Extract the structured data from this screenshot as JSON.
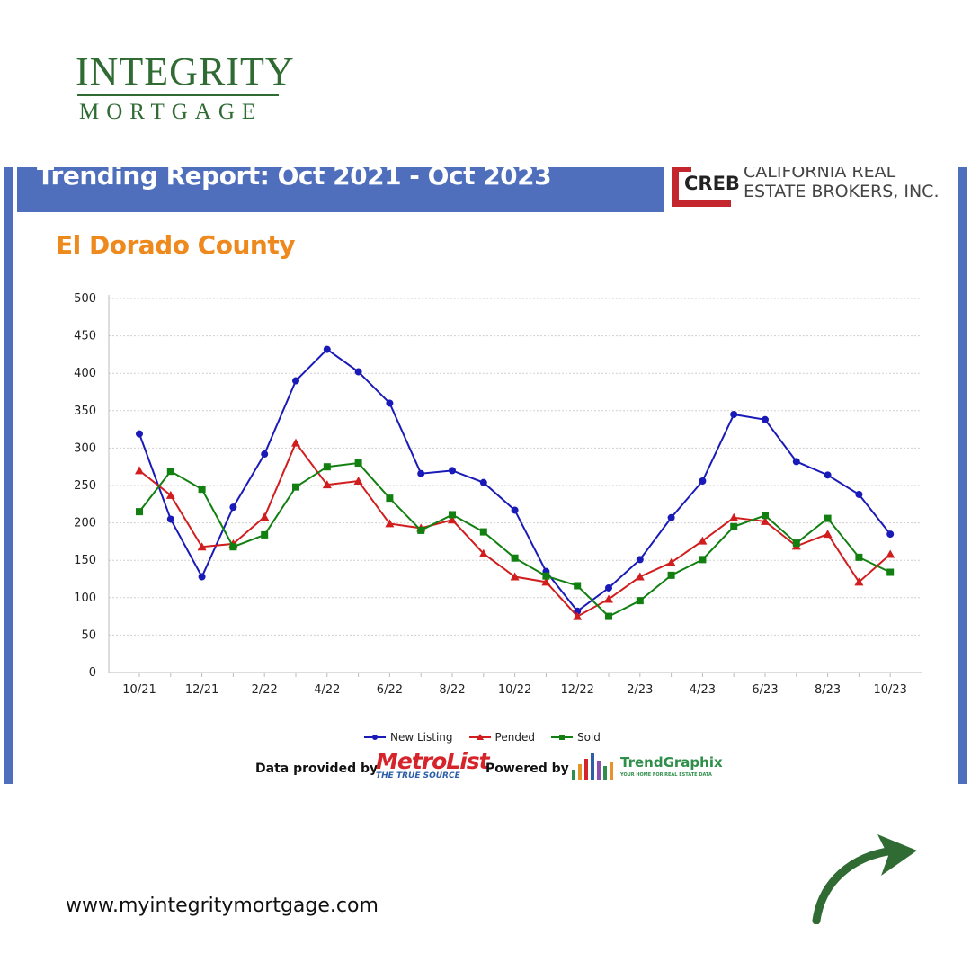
{
  "brand": {
    "logo_top": "INTEGRITY",
    "logo_bottom": "MORTGAGE",
    "color": "#2f6b32"
  },
  "report": {
    "banner_title": "Trending Report: Oct 2021 - Oct 2023",
    "creb_mark": "CREB",
    "creb_name": "CALIFORNIA REAL\nESTATE BROKERS, INC.",
    "subtitle": "El Dorado County",
    "credits": {
      "data_label": "Data provided by",
      "metrolist_name": "MetroList",
      "metrolist_tagline": "THE TRUE SOURCE",
      "powered_label": "Powered by",
      "trendgraphix_name": "TrendGraphix",
      "trendgraphix_tagline": "YOUR HOME FOR REAL ESTATE DATA"
    }
  },
  "chart_data": {
    "type": "line",
    "title": "",
    "xlabel": "",
    "ylabel": "",
    "ylim": [
      0,
      500
    ],
    "yticks": [
      0,
      50,
      100,
      150,
      200,
      250,
      300,
      350,
      400,
      450,
      500
    ],
    "grid": true,
    "legend_position": "bottom",
    "x": [
      "10/21",
      "11/21",
      "12/21",
      "1/22",
      "2/22",
      "3/22",
      "4/22",
      "5/22",
      "6/22",
      "7/22",
      "8/22",
      "9/22",
      "10/22",
      "11/22",
      "12/22",
      "1/23",
      "2/23",
      "3/23",
      "4/23",
      "5/23",
      "6/23",
      "7/23",
      "8/23",
      "9/23",
      "10/23"
    ],
    "x_tick_labels": [
      "10/21",
      "12/21",
      "2/22",
      "4/22",
      "6/22",
      "8/22",
      "10/22",
      "12/22",
      "2/23",
      "4/23",
      "6/23",
      "8/23",
      "10/23"
    ],
    "series": [
      {
        "name": "New Listing",
        "color": "#1a1ab8",
        "marker": "circle",
        "values": [
          319,
          205,
          128,
          221,
          292,
          390,
          432,
          402,
          360,
          266,
          270,
          254,
          217,
          135,
          82,
          113,
          151,
          207,
          256,
          345,
          338,
          282,
          264,
          238,
          185
        ]
      },
      {
        "name": "Pended",
        "color": "#d11d1d",
        "marker": "triangle",
        "values": [
          270,
          237,
          168,
          172,
          208,
          307,
          251,
          256,
          199,
          193,
          204,
          159,
          128,
          121,
          75,
          98,
          128,
          147,
          176,
          207,
          202,
          169,
          185,
          121,
          158
        ]
      },
      {
        "name": "Sold",
        "color": "#118011",
        "marker": "square",
        "values": [
          215,
          269,
          245,
          168,
          184,
          248,
          275,
          280,
          233,
          190,
          211,
          188,
          153,
          129,
          116,
          75,
          96,
          130,
          151,
          195,
          210,
          173,
          206,
          154,
          134
        ]
      }
    ]
  },
  "website": "www.myintegritymortgage.com",
  "arrow_color": "#2f6b32"
}
